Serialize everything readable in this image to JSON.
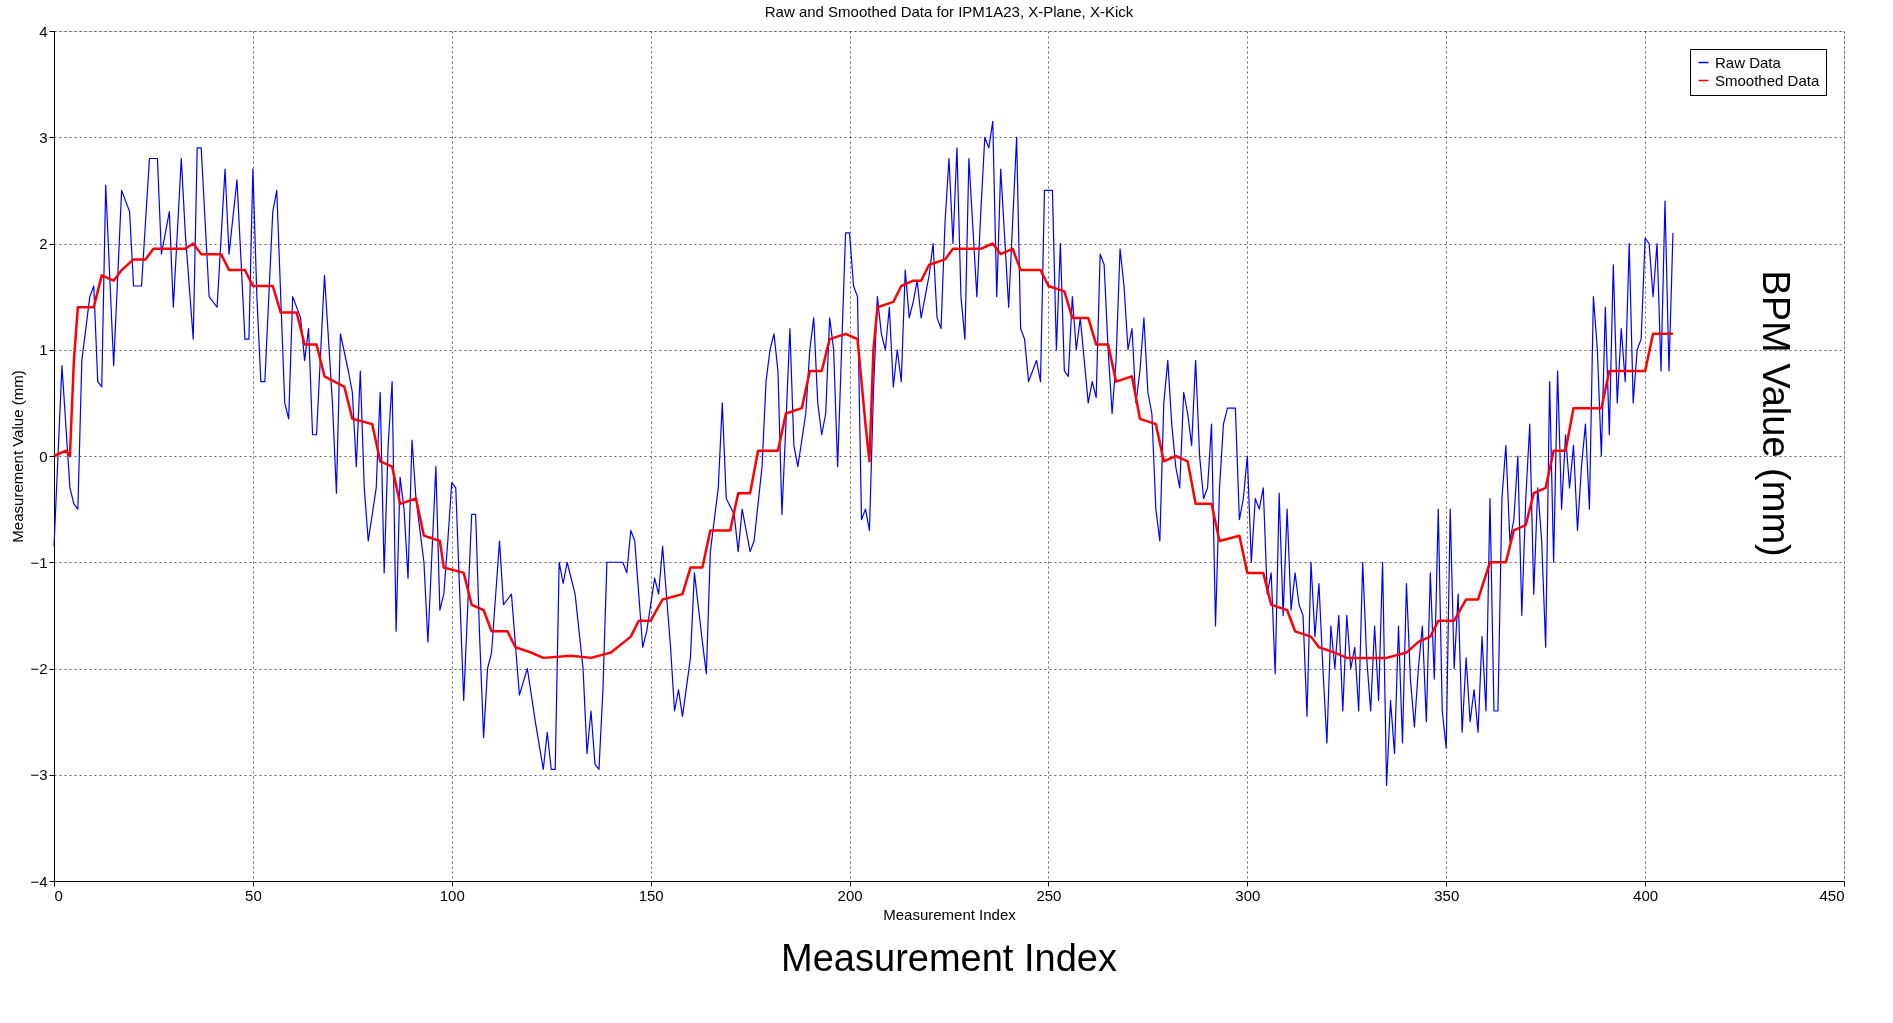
{
  "chart_data": {
    "type": "line",
    "title": "Raw and Smoothed Data for IPM1A23, X-Plane, X-Kick",
    "xlabel": "Measurement Index",
    "ylabel": "Measurement Value (mm)",
    "annotations": [
      "BPM Value (mm)",
      "Measurement Index"
    ],
    "xlim": [
      0,
      450
    ],
    "xticks": [
      0,
      50,
      100,
      150,
      200,
      250,
      300,
      350,
      400,
      450
    ],
    "ylim": [
      -4,
      4
    ],
    "yticks": [
      -4,
      -3,
      -2,
      -1,
      0,
      1,
      2,
      3,
      4
    ],
    "grid": true,
    "legend": "top right",
    "line_style": "solid",
    "marker": "none",
    "series": [
      {
        "name": "Raw Data",
        "color": "#0000ff",
        "x": [
          0,
          2,
          4,
          5,
          6,
          7,
          9,
          10,
          11,
          12,
          13,
          15,
          17,
          19,
          20,
          22,
          24,
          26,
          27,
          29,
          30,
          32,
          33,
          35,
          36,
          37,
          39,
          41,
          43,
          44,
          46,
          48,
          49,
          50,
          51,
          52,
          53,
          55,
          56,
          58,
          59,
          60,
          62,
          63,
          64,
          65,
          66,
          68,
          70,
          71,
          72,
          74,
          75,
          76,
          77,
          78,
          79,
          81,
          82,
          83,
          84,
          85,
          86,
          87,
          88,
          89,
          90,
          91,
          93,
          94,
          96,
          97,
          98,
          99,
          100,
          101,
          103,
          105,
          106,
          107,
          108,
          109,
          110,
          112,
          113,
          115,
          117,
          119,
          121,
          123,
          124,
          125,
          126,
          127,
          128,
          129,
          131,
          133,
          134,
          135,
          136,
          137,
          138,
          139,
          141,
          143,
          144,
          145,
          146,
          147,
          148,
          149,
          151,
          152,
          153,
          155,
          156,
          157,
          158,
          160,
          161,
          163,
          164,
          165,
          167,
          168,
          169,
          171,
          172,
          173,
          175,
          176,
          178,
          179,
          180,
          181,
          182,
          183,
          184,
          185,
          186,
          187,
          189,
          190,
          191,
          192,
          193,
          194,
          195,
          196,
          197,
          198,
          199,
          200,
          201,
          202,
          203,
          204,
          205,
          206,
          207,
          208,
          209,
          210,
          211,
          212,
          213,
          214,
          215,
          216,
          217,
          218,
          220,
          221,
          222,
          223,
          224,
          225,
          226,
          227,
          228,
          229,
          230,
          232,
          233,
          234,
          235,
          236,
          237,
          238,
          240,
          242,
          243,
          244,
          245,
          246,
          247,
          248,
          249,
          251,
          252,
          253,
          254,
          255,
          256,
          257,
          258,
          259,
          260,
          261,
          262,
          263,
          264,
          265,
          266,
          267,
          268,
          269,
          270,
          271,
          272,
          273,
          274,
          275,
          276,
          277,
          278,
          279,
          280,
          281,
          282,
          283,
          284,
          285,
          286,
          287,
          288,
          289,
          290,
          291,
          292,
          293,
          294,
          295,
          297,
          298,
          299,
          300,
          301,
          302,
          303,
          304,
          305,
          306,
          307,
          308,
          309,
          310,
          311,
          312,
          313,
          314,
          315,
          316,
          317,
          318,
          319,
          320,
          321,
          322,
          323,
          324,
          325,
          326,
          327,
          328,
          329,
          330,
          331,
          332,
          333,
          334,
          335,
          336,
          337,
          338,
          339,
          340,
          341,
          342,
          343,
          344,
          345,
          346,
          347,
          348,
          349,
          350,
          351,
          352,
          353,
          354,
          355,
          356,
          357,
          358,
          359,
          360,
          361,
          362,
          363,
          364,
          365,
          366,
          367,
          368,
          369,
          370,
          371,
          372,
          373,
          374,
          375,
          376,
          377,
          378,
          379,
          380,
          381,
          382,
          383,
          384,
          385,
          386,
          387,
          388,
          389,
          390,
          391,
          392,
          393,
          394,
          395,
          396,
          397,
          398,
          399,
          400,
          401,
          402,
          403,
          404,
          405,
          406,
          407
        ],
        "values": [
          -0.85,
          0.85,
          -0.3,
          -0.45,
          -0.5,
          0.9,
          1.5,
          1.6,
          0.7,
          0.65,
          2.55,
          0.85,
          2.5,
          2.3,
          1.6,
          1.6,
          2.8,
          2.8,
          1.9,
          2.3,
          1.4,
          2.8,
          2.1,
          1.1,
          2.9,
          2.9,
          1.5,
          1.4,
          2.7,
          1.9,
          2.6,
          1.1,
          1.1,
          2.7,
          1.5,
          0.7,
          0.7,
          2.3,
          2.5,
          0.5,
          0.35,
          1.5,
          1.3,
          0.9,
          1.2,
          0.2,
          0.2,
          1.7,
          0.5,
          -0.35,
          1.15,
          0.8,
          0.6,
          -0.1,
          0.8,
          -0.3,
          -0.8,
          -0.3,
          0.6,
          -1.1,
          0.1,
          0.7,
          -1.65,
          -0.2,
          -0.5,
          -1.15,
          0.15,
          -0.4,
          -1.0,
          -1.75,
          -0.1,
          -1.45,
          -1.3,
          -0.8,
          -0.25,
          -0.3,
          -2.3,
          -0.55,
          -0.55,
          -1.7,
          -2.65,
          -2.0,
          -1.85,
          -0.8,
          -1.4,
          -1.3,
          -2.25,
          -2.0,
          -2.5,
          -2.95,
          -2.6,
          -2.95,
          -2.95,
          -1.0,
          -1.2,
          -1.0,
          -1.3,
          -2.0,
          -2.8,
          -2.4,
          -2.9,
          -2.95,
          -2.2,
          -1.0,
          -1.0,
          -1.0,
          -1.1,
          -0.7,
          -0.8,
          -1.3,
          -1.8,
          -1.65,
          -1.15,
          -1.3,
          -0.85,
          -1.8,
          -2.4,
          -2.2,
          -2.45,
          -1.9,
          -1.1,
          -1.75,
          -2.05,
          -0.9,
          -0.3,
          0.5,
          -0.4,
          -0.55,
          -0.9,
          -0.5,
          -0.9,
          -0.8,
          -0.1,
          0.7,
          1.0,
          1.15,
          0.8,
          -0.55,
          0.3,
          1.2,
          0.1,
          -0.1,
          0.4,
          1.0,
          1.3,
          0.5,
          0.2,
          0.4,
          1.3,
          1.0,
          -0.1,
          1.0,
          2.1,
          2.1,
          1.6,
          1.5,
          -0.6,
          -0.5,
          -0.7,
          0.6,
          1.5,
          1.15,
          1.0,
          1.4,
          0.65,
          1.0,
          0.7,
          1.75,
          1.3,
          1.45,
          1.65,
          1.3,
          1.7,
          2.0,
          1.3,
          1.2,
          2.2,
          2.8,
          2.0,
          2.9,
          1.5,
          1.1,
          2.8,
          1.5,
          2.3,
          3.0,
          2.9,
          3.15,
          1.5,
          2.7,
          1.4,
          3.0,
          1.2,
          1.1,
          0.7,
          0.8,
          0.9,
          0.7,
          2.5,
          2.5,
          1.0,
          2.0,
          0.8,
          0.75,
          1.5,
          1.0,
          1.3,
          0.9,
          0.5,
          0.7,
          0.55,
          1.9,
          1.8,
          1.0,
          0.4,
          0.9,
          1.95,
          1.6,
          1.0,
          1.2,
          0.5,
          0.8,
          1.3,
          0.6,
          0.4,
          -0.5,
          -0.8,
          0.5,
          0.9,
          0.3,
          -0.1,
          -0.3,
          0.6,
          0.4,
          0.1,
          0.9,
          0.0,
          -0.4,
          -0.3,
          0.3,
          -1.6,
          -0.3,
          0.3,
          0.45,
          0.45,
          -0.6,
          -0.4,
          0.0,
          -1.0,
          -0.4,
          -0.5,
          -0.3,
          -1.3,
          -1.1,
          -2.05,
          -0.35,
          -1.5,
          -0.5,
          -1.45,
          -1.1,
          -1.4,
          -1.5,
          -2.45,
          -1.0,
          -1.7,
          -1.2,
          -2.0,
          -2.7,
          -1.6,
          -2.0,
          -1.5,
          -2.4,
          -1.5,
          -2.0,
          -1.8,
          -2.4,
          -1.0,
          -1.9,
          -2.4,
          -1.6,
          -2.3,
          -1.0,
          -3.1,
          -2.3,
          -2.8,
          -1.6,
          -2.7,
          -1.2,
          -2.1,
          -2.55,
          -2.0,
          -1.6,
          -2.5,
          -1.1,
          -2.1,
          -0.5,
          -2.4,
          -2.75,
          -0.5,
          -2.0,
          -1.3,
          -2.6,
          -1.9,
          -2.5,
          -2.2,
          -2.6,
          -1.7,
          -2.4,
          -0.4,
          -2.4,
          -2.4,
          -0.4,
          0.1,
          -0.8,
          -0.6,
          0.0,
          -1.5,
          -0.4,
          0.3,
          -1.3,
          -0.3,
          -0.8,
          -1.8,
          0.7,
          -1.0,
          0.8,
          -0.5,
          0.2,
          -0.3,
          0.1,
          -0.7,
          -0.1,
          0.3,
          -0.5,
          1.5,
          1.0,
          0.0,
          1.4,
          0.2,
          1.8,
          0.5,
          1.2,
          0.7,
          2.0,
          0.5,
          1.0,
          1.1,
          2.05,
          2.0,
          1.5,
          2.0,
          0.8,
          2.4,
          0.8,
          2.1
        ]
      },
      {
        "name": "Smoothed Data",
        "color": "#ff0000",
        "x": [
          0,
          3,
          4,
          5,
          6,
          10,
          12,
          15,
          17,
          20,
          23,
          25,
          33,
          35,
          37,
          42,
          44,
          48,
          50,
          55,
          57,
          61,
          63,
          66,
          68,
          73,
          75,
          80,
          82,
          85,
          87,
          91,
          93,
          97,
          98,
          103,
          105,
          108,
          110,
          114,
          116,
          120,
          123,
          130,
          135,
          140,
          145,
          147,
          150,
          153,
          158,
          160,
          163,
          165,
          170,
          172,
          175,
          177,
          182,
          184,
          188,
          190,
          193,
          195,
          199,
          202,
          204,
          205,
          206,
          207,
          211,
          213,
          216,
          218,
          220,
          224,
          226,
          233,
          236,
          238,
          241,
          243,
          248,
          250,
          254,
          256,
          260,
          262,
          265,
          267,
          271,
          273,
          277,
          279,
          282,
          285,
          287,
          291,
          293,
          298,
          300,
          304,
          306,
          310,
          312,
          316,
          318,
          322,
          325,
          332,
          335,
          340,
          343,
          346,
          348,
          352,
          355,
          358,
          361,
          365,
          367,
          370,
          372,
          375,
          377,
          380,
          382,
          389,
          391,
          400,
          402,
          407
        ],
        "values": [
          0,
          0.05,
          0,
          0.9,
          1.4,
          1.4,
          1.7,
          1.65,
          1.75,
          1.85,
          1.85,
          1.95,
          1.95,
          2.0,
          1.9,
          1.9,
          1.75,
          1.75,
          1.6,
          1.6,
          1.35,
          1.35,
          1.05,
          1.05,
          0.75,
          0.65,
          0.35,
          0.3,
          -0.05,
          -0.1,
          -0.45,
          -0.4,
          -0.75,
          -0.8,
          -1.05,
          -1.1,
          -1.4,
          -1.45,
          -1.65,
          -1.65,
          -1.8,
          -1.85,
          -1.9,
          -1.88,
          -1.9,
          -1.85,
          -1.7,
          -1.55,
          -1.55,
          -1.35,
          -1.3,
          -1.05,
          -1.05,
          -0.7,
          -0.7,
          -0.35,
          -0.35,
          0.05,
          0.05,
          0.4,
          0.45,
          0.8,
          0.8,
          1.1,
          1.15,
          1.1,
          0.3,
          -0.05,
          1.0,
          1.4,
          1.45,
          1.6,
          1.65,
          1.65,
          1.8,
          1.85,
          1.95,
          1.95,
          2.0,
          1.9,
          1.95,
          1.75,
          1.75,
          1.6,
          1.55,
          1.3,
          1.3,
          1.05,
          1.05,
          0.7,
          0.75,
          0.35,
          0.3,
          -0.05,
          0,
          -0.05,
          -0.45,
          -0.45,
          -0.8,
          -0.75,
          -1.1,
          -1.1,
          -1.4,
          -1.45,
          -1.65,
          -1.7,
          -1.8,
          -1.85,
          -1.9,
          -1.9,
          -1.9,
          -1.85,
          -1.75,
          -1.7,
          -1.55,
          -1.55,
          -1.35,
          -1.35,
          -1.0,
          -1.0,
          -0.7,
          -0.65,
          -0.35,
          -0.3,
          0.05,
          0.05,
          0.45,
          0.45,
          0.8,
          0.8,
          1.15,
          1.15
        ]
      }
    ]
  }
}
